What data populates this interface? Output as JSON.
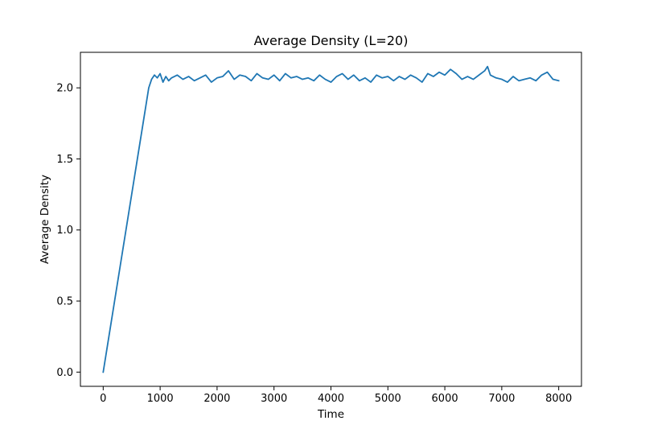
{
  "chart_data": {
    "type": "line",
    "title": "Average Density (L=20)",
    "xlabel": "Time",
    "ylabel": "Average Density",
    "xlim": [
      -400,
      8400
    ],
    "ylim": [
      -0.1,
      2.25
    ],
    "x_ticks": [
      0,
      1000,
      2000,
      3000,
      4000,
      5000,
      6000,
      7000,
      8000
    ],
    "y_ticks": [
      0.0,
      0.5,
      1.0,
      1.5,
      2.0
    ],
    "x_tick_labels": [
      "0",
      "1000",
      "2000",
      "3000",
      "4000",
      "5000",
      "6000",
      "7000",
      "8000"
    ],
    "y_tick_labels": [
      "0.0",
      "0.5",
      "1.0",
      "1.5",
      "2.0"
    ],
    "grid": false,
    "legend": "none",
    "line_color": "#1f77b4",
    "series": [
      {
        "x": [
          0,
          100,
          200,
          300,
          400,
          500,
          600,
          700,
          800,
          850,
          900,
          950,
          1000,
          1050,
          1100,
          1150,
          1200,
          1300,
          1400,
          1500,
          1600,
          1700,
          1800,
          1900,
          2000,
          2100,
          2200,
          2300,
          2400,
          2500,
          2600,
          2700,
          2800,
          2900,
          3000,
          3100,
          3200,
          3300,
          3400,
          3500,
          3600,
          3700,
          3800,
          3900,
          4000,
          4100,
          4200,
          4300,
          4400,
          4500,
          4600,
          4700,
          4800,
          4900,
          5000,
          5100,
          5200,
          5300,
          5400,
          5500,
          5600,
          5700,
          5800,
          5900,
          6000,
          6100,
          6200,
          6300,
          6400,
          6500,
          6600,
          6700,
          6750,
          6800,
          6900,
          7000,
          7100,
          7200,
          7300,
          7400,
          7500,
          7600,
          7700,
          7800,
          7900,
          8000
        ],
        "y": [
          0.0,
          0.25,
          0.5,
          0.75,
          1.0,
          1.25,
          1.5,
          1.75,
          2.0,
          2.06,
          2.09,
          2.07,
          2.1,
          2.04,
          2.08,
          2.05,
          2.07,
          2.09,
          2.06,
          2.08,
          2.05,
          2.07,
          2.09,
          2.04,
          2.07,
          2.08,
          2.12,
          2.06,
          2.09,
          2.08,
          2.05,
          2.1,
          2.07,
          2.06,
          2.09,
          2.05,
          2.1,
          2.07,
          2.08,
          2.06,
          2.07,
          2.05,
          2.09,
          2.06,
          2.04,
          2.08,
          2.1,
          2.06,
          2.09,
          2.05,
          2.07,
          2.04,
          2.09,
          2.07,
          2.08,
          2.05,
          2.08,
          2.06,
          2.09,
          2.07,
          2.04,
          2.1,
          2.08,
          2.11,
          2.09,
          2.13,
          2.1,
          2.06,
          2.08,
          2.06,
          2.09,
          2.12,
          2.15,
          2.09,
          2.07,
          2.06,
          2.04,
          2.08,
          2.05,
          2.06,
          2.07,
          2.05,
          2.09,
          2.11,
          2.06,
          2.05
        ]
      }
    ]
  }
}
